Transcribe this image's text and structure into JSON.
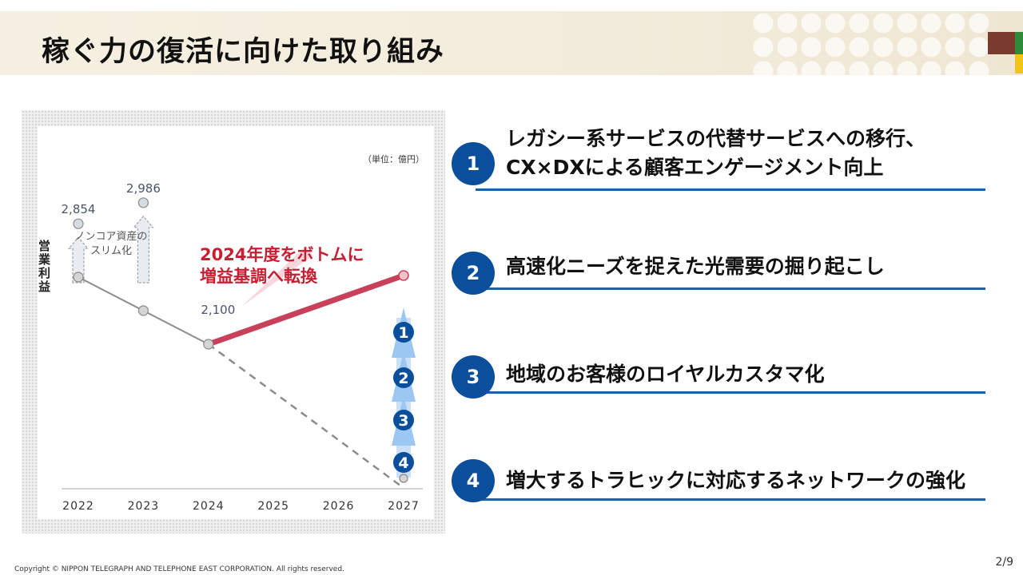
{
  "header": {
    "title": "稼ぐ力の復活に向けた取り組み",
    "brand_colors": [
      "#7a3b2e",
      "#2e8b3a",
      "#f0c419"
    ]
  },
  "chart_data": {
    "type": "line",
    "unit": "（単位：億円）",
    "ylabel": "営業利益",
    "categories": [
      "2022",
      "2023",
      "2024",
      "2025",
      "2026",
      "2027"
    ],
    "ylim": [
      1200,
      3000
    ],
    "series": [
      {
        "name": "",
        "style": "solid-gray",
        "x": [
          "2022",
          "2023",
          "2024"
        ],
        "values": [
          2520,
          2310,
          2100
        ]
      },
      {
        "name": "",
        "style": "dashed-gray",
        "x": [
          "2024",
          "2027"
        ],
        "values": [
          2100,
          1200
        ]
      },
      {
        "name": "",
        "style": "solid-red",
        "x": [
          "2024",
          "2027"
        ],
        "values": [
          2100,
          2530
        ]
      }
    ],
    "peak_points": [
      {
        "x": "2022",
        "value": 2854,
        "label": "2,854"
      },
      {
        "x": "2023",
        "value": 2986,
        "label": "2,986"
      }
    ],
    "data_labels": [
      {
        "x": "2024",
        "value": 2100,
        "label": "2,100"
      }
    ],
    "annotations": {
      "noncore": "ノンコア資産の\nスリム化",
      "bottom_line1": "2024年度をボトムに",
      "bottom_line2": "増益基調へ転換",
      "steps": [
        "1",
        "2",
        "3",
        "4"
      ]
    },
    "colors": {
      "line_gray": "#8c8c8c",
      "line_red": "#c9405a",
      "annotation_red": "#c81e32",
      "step_circle": "#0b4f9c",
      "step_arrow": "#9cc7f2"
    }
  },
  "initiatives": [
    {
      "number": "1",
      "line1": "レガシー系サービスの代替サービスへの移行、",
      "line2": "CX×DXによる顧客エンゲージメント向上"
    },
    {
      "number": "2",
      "line1": "高速化ニーズを捉えた光需要の掘り起こし",
      "line2": ""
    },
    {
      "number": "3",
      "line1": "地域のお客様のロイヤルカスタマ化",
      "line2": ""
    },
    {
      "number": "4",
      "line1": "増大するトラヒックに対応するネットワークの強化",
      "line2": ""
    }
  ],
  "footer": {
    "copyright": "Copyright © NIPPON TELEGRAPH AND TELEPHONE EAST CORPORATION. All rights reserved.",
    "page": "2/9"
  }
}
